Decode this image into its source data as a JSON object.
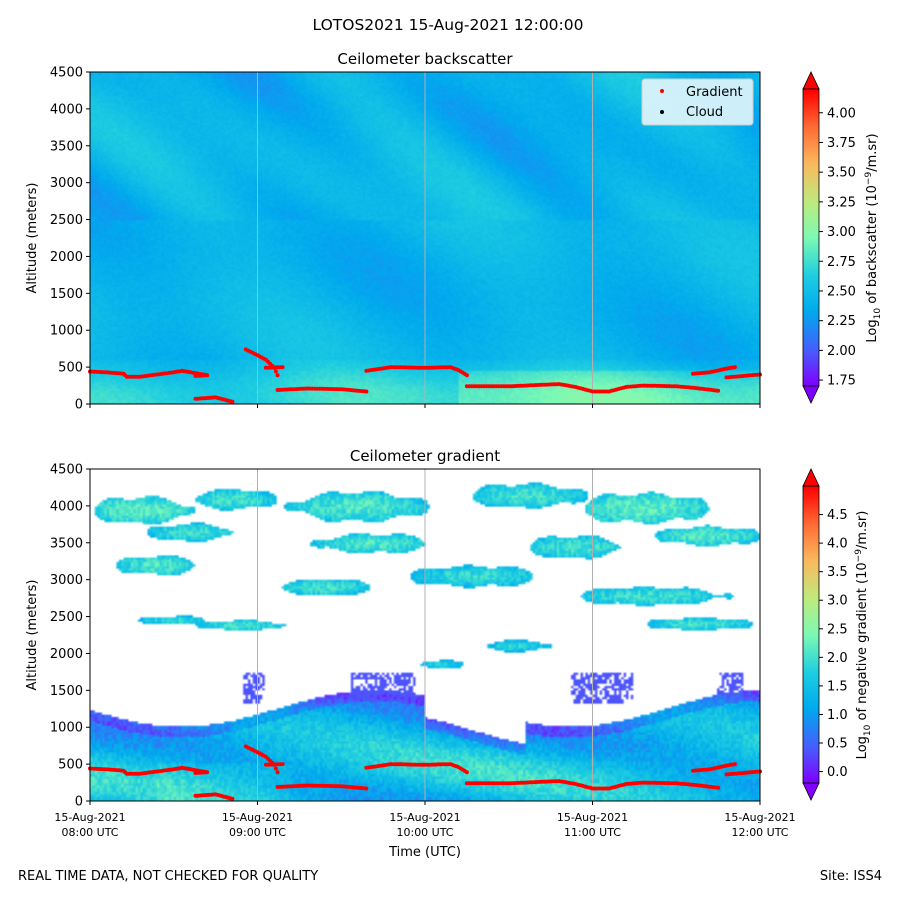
{
  "figure_title": "LOTOS2021 15-Aug-2021 12:00:00",
  "footer": {
    "left": "REAL TIME DATA, NOT CHECKED FOR QUALITY",
    "right": "Site: ISS4"
  },
  "colors": {
    "gradient_marker": "#ff0000",
    "cloud_marker": "#000000",
    "grid": "#b0b0b0"
  },
  "chart_data": [
    {
      "type": "heatmap",
      "title": "Ceilometer backscatter",
      "xlabel": "",
      "ylabel": "Altitude (meters)",
      "xlim_hours": [
        8,
        12
      ],
      "ylim": [
        0,
        4500
      ],
      "yticks": [
        "0",
        "500",
        "1000",
        "1500",
        "2000",
        "2500",
        "3000",
        "3500",
        "4000",
        "4500"
      ],
      "xticks": [
        {
          "hour": 8,
          "date": "15-Aug-2021",
          "time": "08:00 UTC"
        },
        {
          "hour": 9,
          "date": "15-Aug-2021",
          "time": "09:00 UTC"
        },
        {
          "hour": 10,
          "date": "15-Aug-2021",
          "time": "10:00 UTC"
        },
        {
          "hour": 11,
          "date": "15-Aug-2021",
          "time": "11:00 UTC"
        },
        {
          "hour": 12,
          "date": "15-Aug-2021",
          "time": "12:00 UTC"
        }
      ],
      "show_xtick_labels": false,
      "colorbar": {
        "label_prefix": "Log",
        "label_sub": "10",
        "label_mid": " of backscatter (10",
        "label_sup": "−9",
        "label_suffix": "/m.sr)",
        "range": [
          1.7,
          4.2
        ],
        "ticks": [
          "1.75",
          "2.00",
          "2.25",
          "2.50",
          "2.75",
          "3.00",
          "3.25",
          "3.50",
          "3.75",
          "4.00"
        ]
      },
      "legend": {
        "position": "top-right",
        "entries": [
          {
            "label": "Gradient",
            "color": "#ff0000"
          },
          {
            "label": "Cloud",
            "color": "#000000"
          }
        ]
      },
      "field": "backscatter",
      "gradient_series": [
        {
          "name": "g1",
          "points": [
            [
              8.0,
              440
            ],
            [
              8.1,
              430
            ],
            [
              8.2,
              410
            ],
            [
              8.22,
              370
            ],
            [
              8.3,
              370
            ],
            [
              8.4,
              400
            ],
            [
              8.5,
              430
            ],
            [
              8.55,
              450
            ],
            [
              8.6,
              430
            ],
            [
              8.7,
              390
            ],
            [
              8.63,
              380
            ],
            [
              8.65,
              400
            ]
          ]
        },
        {
          "name": "g2",
          "points": [
            [
              8.63,
              70
            ],
            [
              8.75,
              90
            ],
            [
              8.8,
              60
            ],
            [
              8.85,
              30
            ]
          ]
        },
        {
          "name": "g3",
          "points": [
            [
              8.93,
              740
            ],
            [
              9.0,
              660
            ],
            [
              9.05,
              600
            ],
            [
              9.1,
              490
            ],
            [
              9.12,
              390
            ]
          ]
        },
        {
          "name": "g4",
          "points": [
            [
              9.05,
              490
            ],
            [
              9.15,
              500
            ]
          ]
        },
        {
          "name": "g5",
          "points": [
            [
              9.12,
              190
            ],
            [
              9.3,
              210
            ],
            [
              9.5,
              200
            ],
            [
              9.65,
              170
            ]
          ]
        },
        {
          "name": "g6",
          "points": [
            [
              9.65,
              450
            ],
            [
              9.8,
              500
            ],
            [
              10.0,
              490
            ],
            [
              10.15,
              500
            ],
            [
              10.2,
              460
            ],
            [
              10.25,
              390
            ]
          ]
        },
        {
          "name": "g7",
          "points": [
            [
              10.25,
              240
            ],
            [
              10.5,
              240
            ],
            [
              10.7,
              260
            ],
            [
              10.8,
              270
            ],
            [
              10.9,
              230
            ],
            [
              11.0,
              170
            ],
            [
              11.1,
              170
            ],
            [
              11.2,
              230
            ],
            [
              11.3,
              250
            ],
            [
              11.5,
              240
            ],
            [
              11.6,
              220
            ],
            [
              11.75,
              180
            ]
          ]
        },
        {
          "name": "g8",
          "points": [
            [
              11.6,
              410
            ],
            [
              11.7,
              430
            ],
            [
              11.8,
              480
            ],
            [
              11.85,
              500
            ]
          ]
        },
        {
          "name": "g9",
          "points": [
            [
              11.8,
              360
            ],
            [
              11.9,
              380
            ],
            [
              12.0,
              400
            ]
          ]
        }
      ]
    },
    {
      "type": "heatmap",
      "title": "Ceilometer gradient",
      "xlabel": "Time (UTC)",
      "ylabel": "Altitude (meters)",
      "xlim_hours": [
        8,
        12
      ],
      "ylim": [
        0,
        4500
      ],
      "yticks": [
        "0",
        "500",
        "1000",
        "1500",
        "2000",
        "2500",
        "3000",
        "3500",
        "4000",
        "4500"
      ],
      "xticks": [
        {
          "hour": 8,
          "date": "15-Aug-2021",
          "time": "08:00 UTC"
        },
        {
          "hour": 9,
          "date": "15-Aug-2021",
          "time": "09:00 UTC"
        },
        {
          "hour": 10,
          "date": "15-Aug-2021",
          "time": "10:00 UTC"
        },
        {
          "hour": 11,
          "date": "15-Aug-2021",
          "time": "11:00 UTC"
        },
        {
          "hour": 12,
          "date": "15-Aug-2021",
          "time": "12:00 UTC"
        }
      ],
      "show_xtick_labels": true,
      "colorbar": {
        "label_prefix": "Log",
        "label_sub": "10",
        "label_mid": " of negative gradient (10",
        "label_sup": "−9",
        "label_suffix": "/m.sr)",
        "range": [
          -0.2,
          5.0
        ],
        "ticks": [
          "0.0",
          "0.5",
          "1.0",
          "1.5",
          "2.0",
          "2.5",
          "3.0",
          "3.5",
          "4.0",
          "4.5"
        ]
      },
      "field": "gradient",
      "gradient_series": "same_as_backscatter"
    }
  ]
}
